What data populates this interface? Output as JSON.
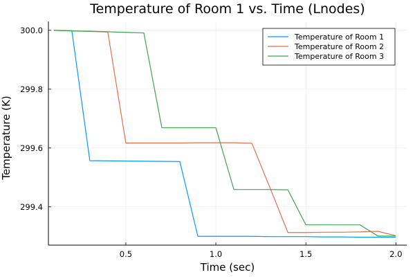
{
  "chart_data": {
    "type": "line",
    "title": "Temperature of Room 1 vs. Time (Lnodes)",
    "xlabel": "Time (sec)",
    "ylabel": "Temperature (K)",
    "xlim": [
      0.07,
      2.06
    ],
    "ylim": [
      299.27,
      300.03
    ],
    "xticks": [
      0.5,
      1.0,
      1.5,
      2.0
    ],
    "xtick_labels": [
      "0.5",
      "1.0",
      "1.5",
      "2.0"
    ],
    "yticks": [
      299.4,
      299.6,
      299.8,
      300.0
    ],
    "ytick_labels": [
      "299.4",
      "299.6",
      "299.8",
      "300.0"
    ],
    "grid": true,
    "legend_position": "top-right",
    "series": [
      {
        "name": "Temperature of Room 1",
        "color": "#009AFA",
        "x": [
          0.1,
          0.2,
          0.3,
          0.8,
          0.9,
          1.0,
          1.1,
          1.2,
          1.3,
          1.4,
          1.5,
          1.6,
          1.7,
          1.8,
          1.9,
          2.0
        ],
        "y": [
          300.0,
          299.999,
          299.557,
          299.554,
          299.3,
          299.3,
          299.3,
          299.3,
          299.299,
          299.299,
          299.299,
          299.298,
          299.298,
          299.297,
          299.297,
          299.297
        ]
      },
      {
        "name": "Temperature of Room 2",
        "color": "#E36F47",
        "x": [
          0.1,
          0.2,
          0.3,
          0.4,
          0.5,
          0.6,
          0.7,
          0.8,
          0.9,
          1.0,
          1.1,
          1.2,
          1.3,
          1.4,
          1.5,
          1.6,
          1.7,
          1.8,
          1.9,
          2.0
        ],
        "y": [
          300.0,
          299.998,
          299.996,
          299.994,
          299.617,
          299.617,
          299.617,
          299.617,
          299.618,
          299.618,
          299.618,
          299.616,
          299.466,
          299.313,
          299.313,
          299.314,
          299.314,
          299.315,
          299.317,
          299.302
        ]
      },
      {
        "name": "Temperature of Room 3",
        "color": "#3EA44E",
        "x": [
          0.1,
          0.2,
          0.3,
          0.4,
          0.5,
          0.6,
          0.7,
          0.8,
          0.9,
          1.0,
          1.1,
          1.2,
          1.3,
          1.4,
          1.5,
          1.6,
          1.7,
          1.8,
          1.9,
          2.0
        ],
        "y": [
          300.0,
          299.998,
          299.997,
          299.995,
          299.993,
          299.991,
          299.669,
          299.669,
          299.669,
          299.669,
          299.459,
          299.459,
          299.459,
          299.458,
          299.339,
          299.339,
          299.339,
          299.339,
          299.301,
          299.301
        ]
      }
    ]
  }
}
